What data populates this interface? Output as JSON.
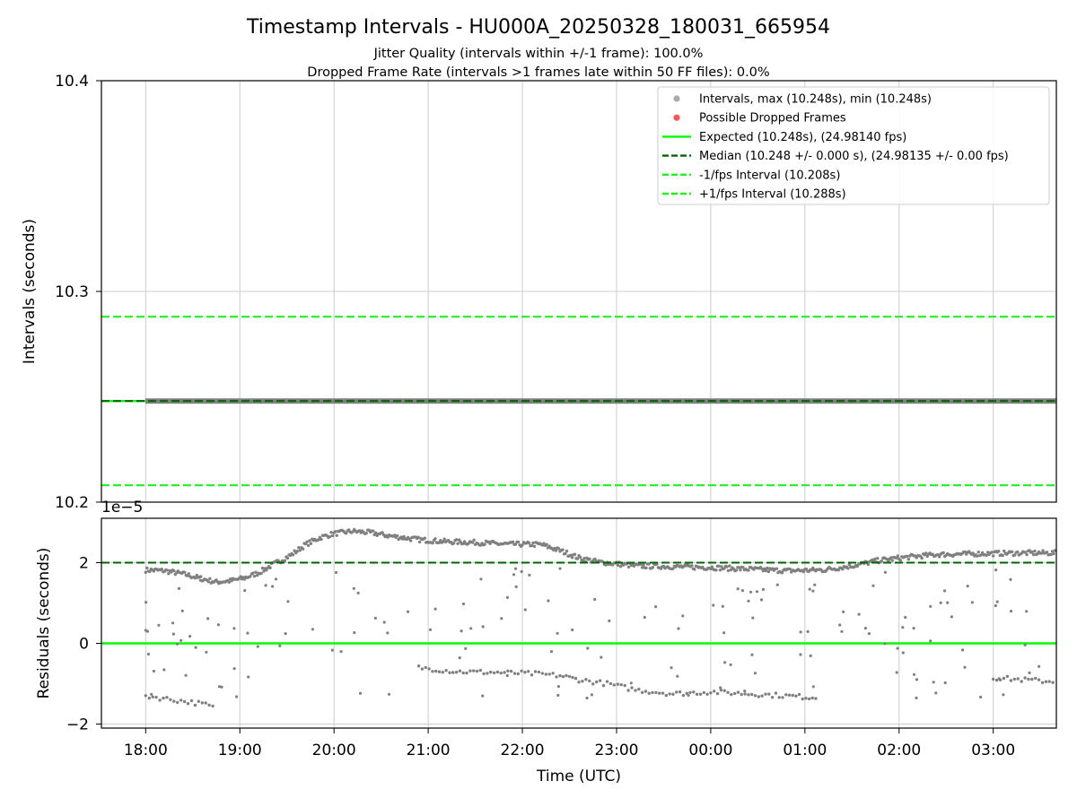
{
  "figure": {
    "title": "Timestamp Intervals - HU000A_20250328_180031_665954",
    "subtitle1": "Jitter Quality (intervals within +/-1 frame): 100.0%",
    "subtitle2": "Dropped Frame Rate (intervals >1 frames late within 50 FF files): 0.0%"
  },
  "colors": {
    "intervals": "#808080",
    "dropped": "#f05a5a",
    "expected": "#00ff00",
    "median": "#006400",
    "fps_band": "#22ee22",
    "grid": "#cccccc"
  },
  "chart_data": [
    {
      "type": "scatter",
      "ylabel": "Intervals (seconds)",
      "xlabel": "",
      "ylim": [
        10.2,
        10.4
      ],
      "yticks": [
        "10.2",
        "10.3",
        "10.4"
      ],
      "grid": true,
      "legend_position": "top-right",
      "legend": [
        {
          "marker": "dot",
          "color": "#aaaaaa",
          "label": "Intervals, max (10.248s), min (10.248s)"
        },
        {
          "marker": "dot",
          "color": "#f05a5a",
          "label": "Possible Dropped Frames"
        },
        {
          "marker": "solid",
          "color": "#00ff00",
          "label": "Expected (10.248s), (24.98140 fps)"
        },
        {
          "marker": "dash",
          "color": "#006400",
          "label": "Median (10.248 +/- 0.000 s), (24.98135 +/- 0.00 fps)"
        },
        {
          "marker": "dash",
          "color": "#22ee22",
          "label": "-1/fps Interval (10.208s)"
        },
        {
          "marker": "dash",
          "color": "#22ee22",
          "label": "+1/fps Interval (10.288s)"
        }
      ],
      "reference_lines": {
        "expected": 10.248,
        "median": 10.248,
        "minus_1fps": 10.208,
        "plus_1fps": 10.288
      },
      "series": [
        {
          "name": "Intervals",
          "x_range": [
            "18:00",
            "03:40"
          ],
          "y": 10.248
        }
      ],
      "dropped_frames": []
    },
    {
      "type": "scatter",
      "ylabel": "Residuals (seconds)",
      "xlabel": "Time (UTC)",
      "offset_label": "1e−5",
      "ylim": [
        -2.1,
        3.1
      ],
      "yticks": [
        "−2",
        "0",
        "2"
      ],
      "xticks": [
        "18:00",
        "19:00",
        "20:00",
        "21:00",
        "22:00",
        "23:00",
        "00:00",
        "01:00",
        "02:00",
        "03:00"
      ],
      "x_range_hours": [
        -0.47,
        9.67
      ],
      "grid": true,
      "reference_lines": {
        "zero": 0,
        "median_residual": 2.0
      },
      "series": [
        {
          "name": "Residuals (main trend, 1e-5 s)",
          "points": [
            [
              0.0,
              1.82
            ],
            [
              0.2,
              1.8
            ],
            [
              0.4,
              1.72
            ],
            [
              0.6,
              1.6
            ],
            [
              0.75,
              1.52
            ],
            [
              0.9,
              1.55
            ],
            [
              1.05,
              1.62
            ],
            [
              1.2,
              1.75
            ],
            [
              1.35,
              1.95
            ],
            [
              1.55,
              2.2
            ],
            [
              1.7,
              2.45
            ],
            [
              1.85,
              2.62
            ],
            [
              2.0,
              2.72
            ],
            [
              2.2,
              2.78
            ],
            [
              2.4,
              2.74
            ],
            [
              2.6,
              2.66
            ],
            [
              2.8,
              2.6
            ],
            [
              2.95,
              2.56
            ],
            [
              3.2,
              2.52
            ],
            [
              3.5,
              2.5
            ],
            [
              3.8,
              2.46
            ],
            [
              4.2,
              2.45
            ],
            [
              4.4,
              2.3
            ],
            [
              4.6,
              2.12
            ],
            [
              4.8,
              2.02
            ],
            [
              5.2,
              1.92
            ],
            [
              5.6,
              1.9
            ],
            [
              6.0,
              1.88
            ],
            [
              6.4,
              1.84
            ],
            [
              6.8,
              1.8
            ],
            [
              7.2,
              1.82
            ],
            [
              7.5,
              1.92
            ],
            [
              7.8,
              2.06
            ],
            [
              8.1,
              2.14
            ],
            [
              8.4,
              2.2
            ],
            [
              8.8,
              2.22
            ],
            [
              9.3,
              2.24
            ],
            [
              9.67,
              2.24
            ]
          ]
        },
        {
          "name": "Residuals (lower branch, 1e-5 s)",
          "points": [
            [
              0.0,
              -1.3
            ],
            [
              0.3,
              -1.4
            ],
            [
              0.6,
              -1.5
            ],
            [
              0.75,
              -1.6
            ],
            [
              2.9,
              -0.6
            ],
            [
              3.3,
              -0.7
            ],
            [
              3.7,
              -0.72
            ],
            [
              4.1,
              -0.75
            ],
            [
              4.4,
              -0.8
            ],
            [
              4.6,
              -0.9
            ],
            [
              4.9,
              -1.0
            ],
            [
              5.2,
              -1.15
            ],
            [
              5.6,
              -1.25
            ],
            [
              6.0,
              -1.2
            ],
            [
              6.4,
              -1.25
            ],
            [
              6.8,
              -1.3
            ],
            [
              7.15,
              -1.35
            ],
            [
              9.0,
              -0.85
            ],
            [
              9.3,
              -0.9
            ],
            [
              9.67,
              -0.95
            ]
          ]
        }
      ]
    }
  ]
}
